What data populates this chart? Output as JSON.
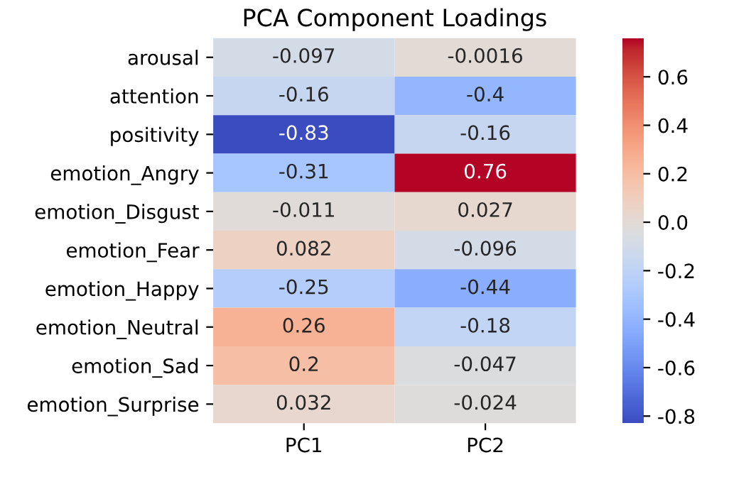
{
  "chart_data": {
    "type": "heatmap",
    "title": "PCA Component Loadings",
    "categories": [
      "PC1",
      "PC2"
    ],
    "y_categories": [
      "arousal",
      "attention",
      "positivity",
      "emotion_Angry",
      "emotion_Disgust",
      "emotion_Fear",
      "emotion_Happy",
      "emotion_Neutral",
      "emotion_Sad",
      "emotion_Surprise"
    ],
    "cells": [
      [
        -0.097,
        -0.0016
      ],
      [
        -0.16,
        -0.4
      ],
      [
        -0.83,
        -0.16
      ],
      [
        -0.31,
        0.76
      ],
      [
        -0.011,
        0.027
      ],
      [
        0.082,
        -0.096
      ],
      [
        -0.25,
        -0.44
      ],
      [
        0.26,
        -0.18
      ],
      [
        0.2,
        -0.047
      ],
      [
        0.032,
        -0.024
      ]
    ],
    "data_labels": true,
    "clim": [
      -0.83,
      0.76
    ],
    "cticks": [
      -0.8,
      -0.6,
      -0.4,
      -0.2,
      {
        "value": 0,
        "label": "0.0"
      },
      0.2,
      0.4,
      0.6
    ]
  }
}
